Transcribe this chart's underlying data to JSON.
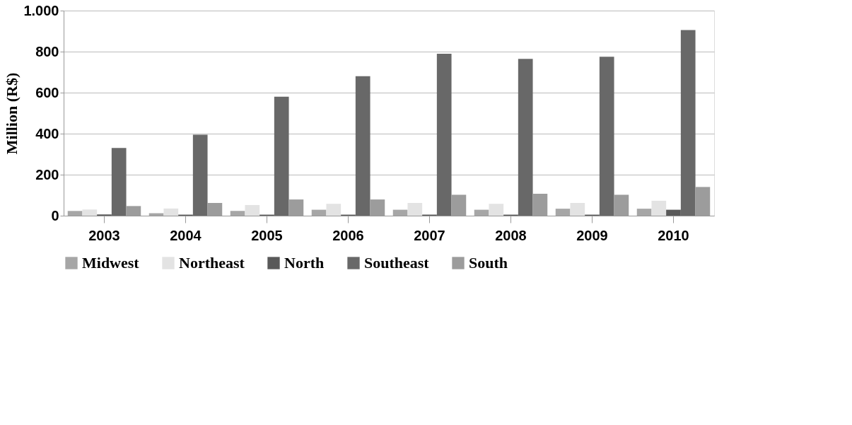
{
  "chart_data": {
    "type": "bar",
    "ylabel": "Million (R$)",
    "categories": [
      "2003",
      "2004",
      "2005",
      "2006",
      "2007",
      "2008",
      "2009",
      "2010"
    ],
    "series": [
      {
        "name": "Midwest",
        "color": "#a6a6a6",
        "values": [
          23,
          12,
          23,
          29,
          29,
          29,
          34,
          34
        ]
      },
      {
        "name": "Northeast",
        "color": "#e3e3e3",
        "values": [
          30,
          35,
          52,
          58,
          62,
          58,
          62,
          73
        ]
      },
      {
        "name": "North",
        "color": "#595959",
        "values": [
          6,
          5,
          5,
          5,
          5,
          5,
          5,
          29
        ]
      },
      {
        "name": "Southeast",
        "color": "#686868",
        "values": [
          330,
          395,
          580,
          680,
          790,
          765,
          775,
          905
        ]
      },
      {
        "name": "South",
        "color": "#9c9c9c",
        "values": [
          47,
          62,
          79,
          79,
          102,
          107,
          102,
          140
        ]
      }
    ],
    "ylim": [
      0,
      1000
    ],
    "yticks": [
      0,
      200,
      400,
      600,
      800,
      {
        "value": 1000,
        "label": "1.000"
      }
    ],
    "grid": "y",
    "legend": "bottom"
  }
}
